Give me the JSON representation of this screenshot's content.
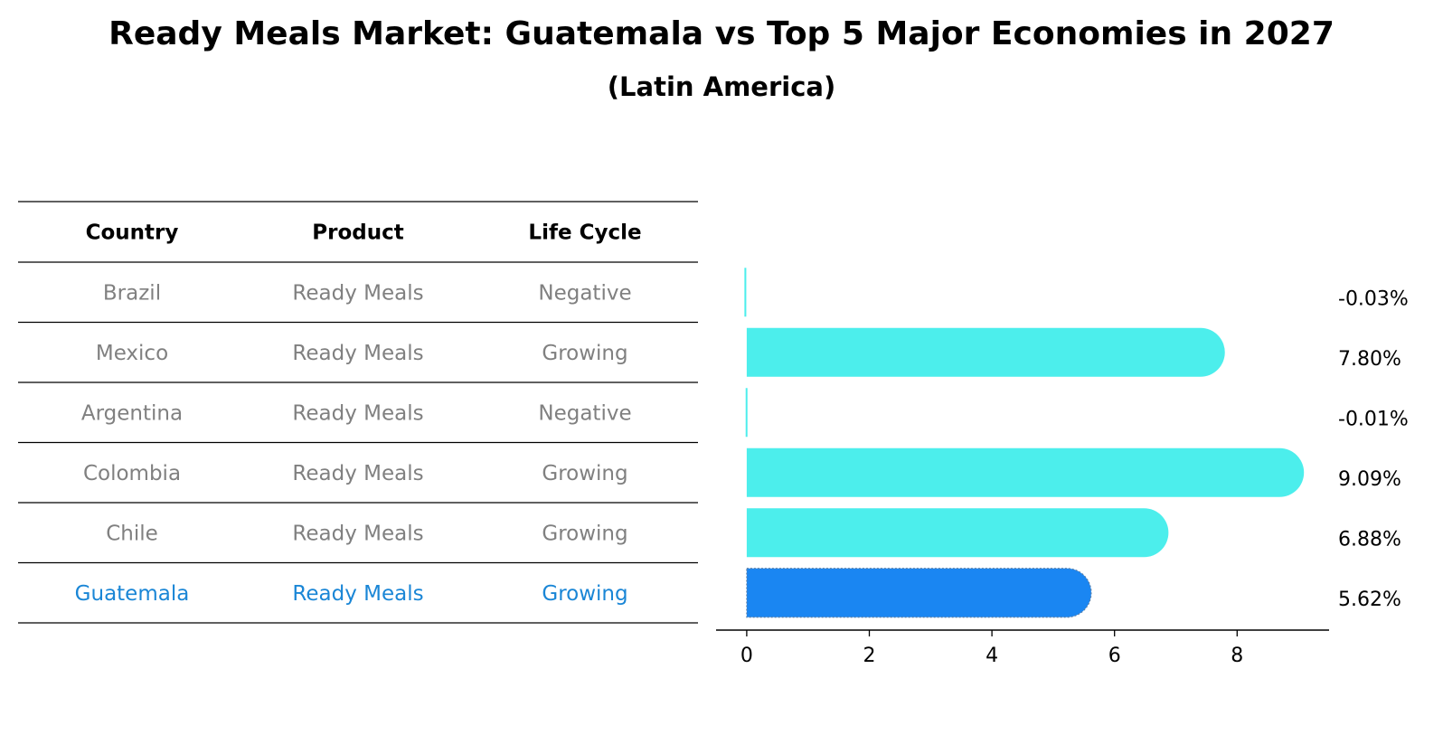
{
  "chart_data": {
    "type": "bar",
    "orientation": "horizontal",
    "title": "Ready Meals Market: Guatemala vs Top 5 Major Economies in 2027",
    "subtitle": "(Latin America)",
    "table": {
      "columns": [
        "Country",
        "Product",
        "Life Cycle"
      ],
      "rows": [
        {
          "country": "Brazil",
          "product": "Ready Meals",
          "life_cycle": "Negative",
          "highlight": false
        },
        {
          "country": "Mexico",
          "product": "Ready Meals",
          "life_cycle": "Growing",
          "highlight": false
        },
        {
          "country": "Argentina",
          "product": "Ready Meals",
          "life_cycle": "Negative",
          "highlight": false
        },
        {
          "country": "Colombia",
          "product": "Ready Meals",
          "life_cycle": "Growing",
          "highlight": false
        },
        {
          "country": "Chile",
          "product": "Ready Meals",
          "life_cycle": "Growing",
          "highlight": false
        },
        {
          "country": "Guatemala",
          "product": "Ready Meals",
          "life_cycle": "Growing",
          "highlight": true
        }
      ]
    },
    "categories": [
      "Brazil",
      "Mexico",
      "Argentina",
      "Colombia",
      "Chile",
      "Guatemala"
    ],
    "values": [
      -0.03,
      7.8,
      -0.01,
      9.09,
      6.88,
      5.62
    ],
    "value_labels": [
      "-0.03%",
      "7.80%",
      "-0.01%",
      "9.09%",
      "6.88%",
      "5.62%"
    ],
    "xlim": [
      -0.5,
      9.5
    ],
    "xticks": [
      0,
      2,
      4,
      6,
      8
    ],
    "xticks_labels": [
      "0",
      "2",
      "4",
      "6",
      "8"
    ],
    "colors": {
      "bar": "#4ceeec",
      "highlight_bar": "#1a86f2",
      "row_text": "#808080",
      "highlight_text": "#1a86d6",
      "header_text": "#000000",
      "grid_line": "#000000"
    }
  }
}
